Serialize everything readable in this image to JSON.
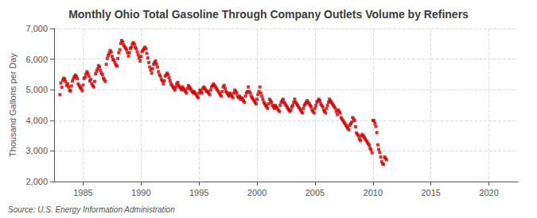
{
  "chart_data": {
    "type": "scatter",
    "title": "Monthly Ohio Total Gasoline Through Company Outlets Volume by Refiners",
    "ylabel": "Thousand Gallons per Day",
    "source": "Source: U.S. Energy Information Administration",
    "color": "#cc0000",
    "marker": "square",
    "grid": true,
    "xlim": [
      1982.5,
      2022.5
    ],
    "xticks": [
      1985,
      1990,
      1995,
      2000,
      2005,
      2010,
      2015,
      2020
    ],
    "ylim": [
      2000,
      7000
    ],
    "yticks": [
      {
        "value": 2000,
        "label": "2,000"
      },
      {
        "value": 3000,
        "label": "3,000"
      },
      {
        "value": 4000,
        "label": "4,000"
      },
      {
        "value": 5000,
        "label": "5,000"
      },
      {
        "value": 6000,
        "label": "6,000"
      },
      {
        "value": 7000,
        "label": "7,000"
      }
    ],
    "x": [
      1983.0,
      1983.08,
      1983.17,
      1983.25,
      1983.33,
      1983.42,
      1983.5,
      1983.58,
      1983.67,
      1983.75,
      1983.83,
      1983.92,
      1984.0,
      1984.08,
      1984.17,
      1984.25,
      1984.33,
      1984.42,
      1984.5,
      1984.58,
      1984.67,
      1984.75,
      1984.83,
      1984.92,
      1985.0,
      1985.08,
      1985.17,
      1985.25,
      1985.33,
      1985.42,
      1985.5,
      1985.58,
      1985.67,
      1985.75,
      1985.83,
      1985.92,
      1986.0,
      1986.08,
      1986.17,
      1986.25,
      1986.33,
      1986.42,
      1986.5,
      1986.58,
      1986.67,
      1986.75,
      1986.83,
      1986.92,
      1987.0,
      1987.08,
      1987.17,
      1987.25,
      1987.33,
      1987.42,
      1987.5,
      1987.58,
      1987.67,
      1987.75,
      1987.83,
      1987.92,
      1988.0,
      1988.08,
      1988.17,
      1988.25,
      1988.33,
      1988.42,
      1988.5,
      1988.58,
      1988.67,
      1988.75,
      1988.83,
      1988.92,
      1989.0,
      1989.08,
      1989.17,
      1989.25,
      1989.33,
      1989.42,
      1989.5,
      1989.58,
      1989.67,
      1989.75,
      1989.83,
      1989.92,
      1990.0,
      1990.08,
      1990.17,
      1990.25,
      1990.33,
      1990.42,
      1990.5,
      1990.58,
      1990.67,
      1990.75,
      1990.83,
      1990.92,
      1991.0,
      1991.08,
      1991.17,
      1991.25,
      1991.33,
      1991.42,
      1991.5,
      1991.58,
      1991.67,
      1991.75,
      1991.83,
      1991.92,
      1992.0,
      1992.08,
      1992.17,
      1992.25,
      1992.33,
      1992.42,
      1992.5,
      1992.58,
      1992.67,
      1992.75,
      1992.83,
      1992.92,
      1993.0,
      1993.08,
      1993.17,
      1993.25,
      1993.33,
      1993.42,
      1993.5,
      1993.58,
      1993.67,
      1993.75,
      1993.83,
      1993.92,
      1994.0,
      1994.08,
      1994.17,
      1994.25,
      1994.33,
      1994.42,
      1994.5,
      1994.58,
      1994.67,
      1994.75,
      1994.83,
      1994.92,
      1995.0,
      1995.08,
      1995.17,
      1995.25,
      1995.33,
      1995.42,
      1995.5,
      1995.58,
      1995.67,
      1995.75,
      1995.83,
      1995.92,
      1996.0,
      1996.08,
      1996.17,
      1996.25,
      1996.33,
      1996.42,
      1996.5,
      1996.58,
      1996.67,
      1996.75,
      1996.83,
      1996.92,
      1997.0,
      1997.08,
      1997.17,
      1997.25,
      1997.33,
      1997.42,
      1997.5,
      1997.58,
      1997.67,
      1997.75,
      1997.83,
      1997.92,
      1998.0,
      1998.08,
      1998.17,
      1998.25,
      1998.33,
      1998.42,
      1998.5,
      1998.58,
      1998.67,
      1998.75,
      1998.83,
      1998.92,
      1999.0,
      1999.08,
      1999.17,
      1999.25,
      1999.33,
      1999.42,
      1999.5,
      1999.58,
      1999.67,
      1999.75,
      1999.83,
      1999.92,
      2000.0,
      2000.08,
      2000.17,
      2000.25,
      2000.33,
      2000.42,
      2000.5,
      2000.58,
      2000.67,
      2000.75,
      2000.83,
      2000.92,
      2001.0,
      2001.08,
      2001.17,
      2001.25,
      2001.33,
      2001.42,
      2001.5,
      2001.58,
      2001.67,
      2001.75,
      2001.83,
      2001.92,
      2002.0,
      2002.08,
      2002.17,
      2002.25,
      2002.33,
      2002.42,
      2002.5,
      2002.58,
      2002.67,
      2002.75,
      2002.83,
      2002.92,
      2003.0,
      2003.08,
      2003.17,
      2003.25,
      2003.33,
      2003.42,
      2003.5,
      2003.58,
      2003.67,
      2003.75,
      2003.83,
      2003.92,
      2004.0,
      2004.08,
      2004.17,
      2004.25,
      2004.33,
      2004.42,
      2004.5,
      2004.58,
      2004.67,
      2004.75,
      2004.83,
      2004.92,
      2005.0,
      2005.08,
      2005.17,
      2005.25,
      2005.33,
      2005.42,
      2005.5,
      2005.58,
      2005.67,
      2005.75,
      2005.83,
      2005.92,
      2006.0,
      2006.08,
      2006.17,
      2006.25,
      2006.33,
      2006.42,
      2006.5,
      2006.58,
      2006.67,
      2006.75,
      2006.83,
      2006.92,
      2007.0,
      2007.08,
      2007.17,
      2007.25,
      2007.33,
      2007.42,
      2007.5,
      2007.58,
      2007.67,
      2007.75,
      2007.83,
      2007.92,
      2008.0,
      2008.08,
      2008.17,
      2008.25,
      2008.33,
      2008.42,
      2008.5,
      2008.58,
      2008.67,
      2008.75,
      2008.83,
      2008.92,
      2009.0,
      2009.08,
      2009.17,
      2009.25,
      2009.33,
      2009.42,
      2009.5,
      2009.58,
      2009.67,
      2009.75,
      2009.83,
      2009.92,
      2010.0,
      2010.08,
      2010.17,
      2010.25,
      2010.33,
      2010.42,
      2010.5,
      2010.58,
      2010.67,
      2010.75,
      2010.83,
      2010.92,
      2011.0,
      2011.08,
      2011.17
    ],
    "values": [
      4840,
      5220,
      5080,
      5310,
      5380,
      5340,
      5260,
      5140,
      5190,
      5090,
      4980,
      4960,
      5120,
      5280,
      5360,
      5420,
      5480,
      5430,
      5360,
      5190,
      5130,
      5080,
      5040,
      4970,
      5150,
      5370,
      5410,
      5510,
      5590,
      5530,
      5440,
      5290,
      5340,
      5200,
      5140,
      5090,
      5270,
      5520,
      5610,
      5680,
      5790,
      5740,
      5630,
      5540,
      5490,
      5380,
      5330,
      5270,
      5830,
      6020,
      6120,
      6190,
      6280,
      6230,
      6090,
      5990,
      5960,
      5880,
      5810,
      5770,
      6020,
      6210,
      6310,
      6510,
      6610,
      6560,
      6460,
      6410,
      6360,
      6310,
      6210,
      6100,
      6210,
      6350,
      6390,
      6490,
      6540,
      6490,
      6390,
      6340,
      6240,
      6140,
      6040,
      5940,
      6090,
      6240,
      6290,
      6340,
      6390,
      6340,
      6190,
      6040,
      5890,
      5740,
      5640,
      5540,
      5690,
      5830,
      5890,
      5940,
      5840,
      5740,
      5590,
      5490,
      5440,
      5340,
      5290,
      5190,
      5290,
      5440,
      5490,
      5540,
      5490,
      5390,
      5290,
      5190,
      5140,
      5090,
      5040,
      4990,
      5090,
      5190,
      5240,
      5140,
      5090,
      5040,
      4990,
      5090,
      5040,
      4990,
      4940,
      4890,
      5040,
      5140,
      5090,
      5040,
      4990,
      4940,
      4890,
      4940,
      4890,
      4840,
      4790,
      4740,
      4890,
      4990,
      4940,
      4890,
      5040,
      5090,
      5040,
      4990,
      4940,
      4940,
      4890,
      4840,
      4990,
      5090,
      5140,
      5190,
      5140,
      5090,
      5040,
      4990,
      4940,
      4890,
      4840,
      4790,
      4940,
      5090,
      5140,
      5040,
      4940,
      4890,
      4840,
      4790,
      4890,
      4840,
      4790,
      4740,
      4890,
      4990,
      4940,
      4890,
      4790,
      4740,
      4790,
      4690,
      4740,
      4690,
      4640,
      4590,
      4790,
      4890,
      4940,
      5090,
      4940,
      4890,
      4790,
      4740,
      4690,
      4640,
      4590,
      4540,
      4690,
      4840,
      4940,
      5090,
      4890,
      4790,
      4690,
      4590,
      4540,
      4490,
      4440,
      4390,
      4540,
      4690,
      4640,
      4590,
      4490,
      4440,
      4390,
      4490,
      4440,
      4390,
      4340,
      4290,
      4490,
      4590,
      4640,
      4690,
      4590,
      4540,
      4490,
      4440,
      4390,
      4340,
      4290,
      4340,
      4440,
      4490,
      4590,
      4690,
      4590,
      4540,
      4490,
      4440,
      4390,
      4340,
      4290,
      4240,
      4390,
      4490,
      4540,
      4590,
      4640,
      4590,
      4540,
      4490,
      4440,
      4340,
      4290,
      4240,
      4390,
      4490,
      4590,
      4640,
      4690,
      4640,
      4540,
      4490,
      4440,
      4340,
      4290,
      4240,
      4390,
      4490,
      4590,
      4690,
      4640,
      4590,
      4540,
      4490,
      4440,
      4390,
      4290,
      4190,
      4340,
      4290,
      4240,
      4090,
      4040,
      3990,
      3940,
      3890,
      3840,
      3790,
      3740,
      3690,
      3840,
      3890,
      3940,
      4090,
      4040,
      3990,
      3790,
      3590,
      3540,
      3490,
      3390,
      3340,
      3490,
      3540,
      3490,
      3440,
      3390,
      3340,
      3290,
      3240,
      3190,
      3090,
      3040,
      2940,
      4000,
      3990,
      3900,
      3800,
      3600,
      3200,
      3050,
      2950,
      2800,
      2650,
      2580,
      2560,
      2800,
      2760,
      2710
    ]
  }
}
